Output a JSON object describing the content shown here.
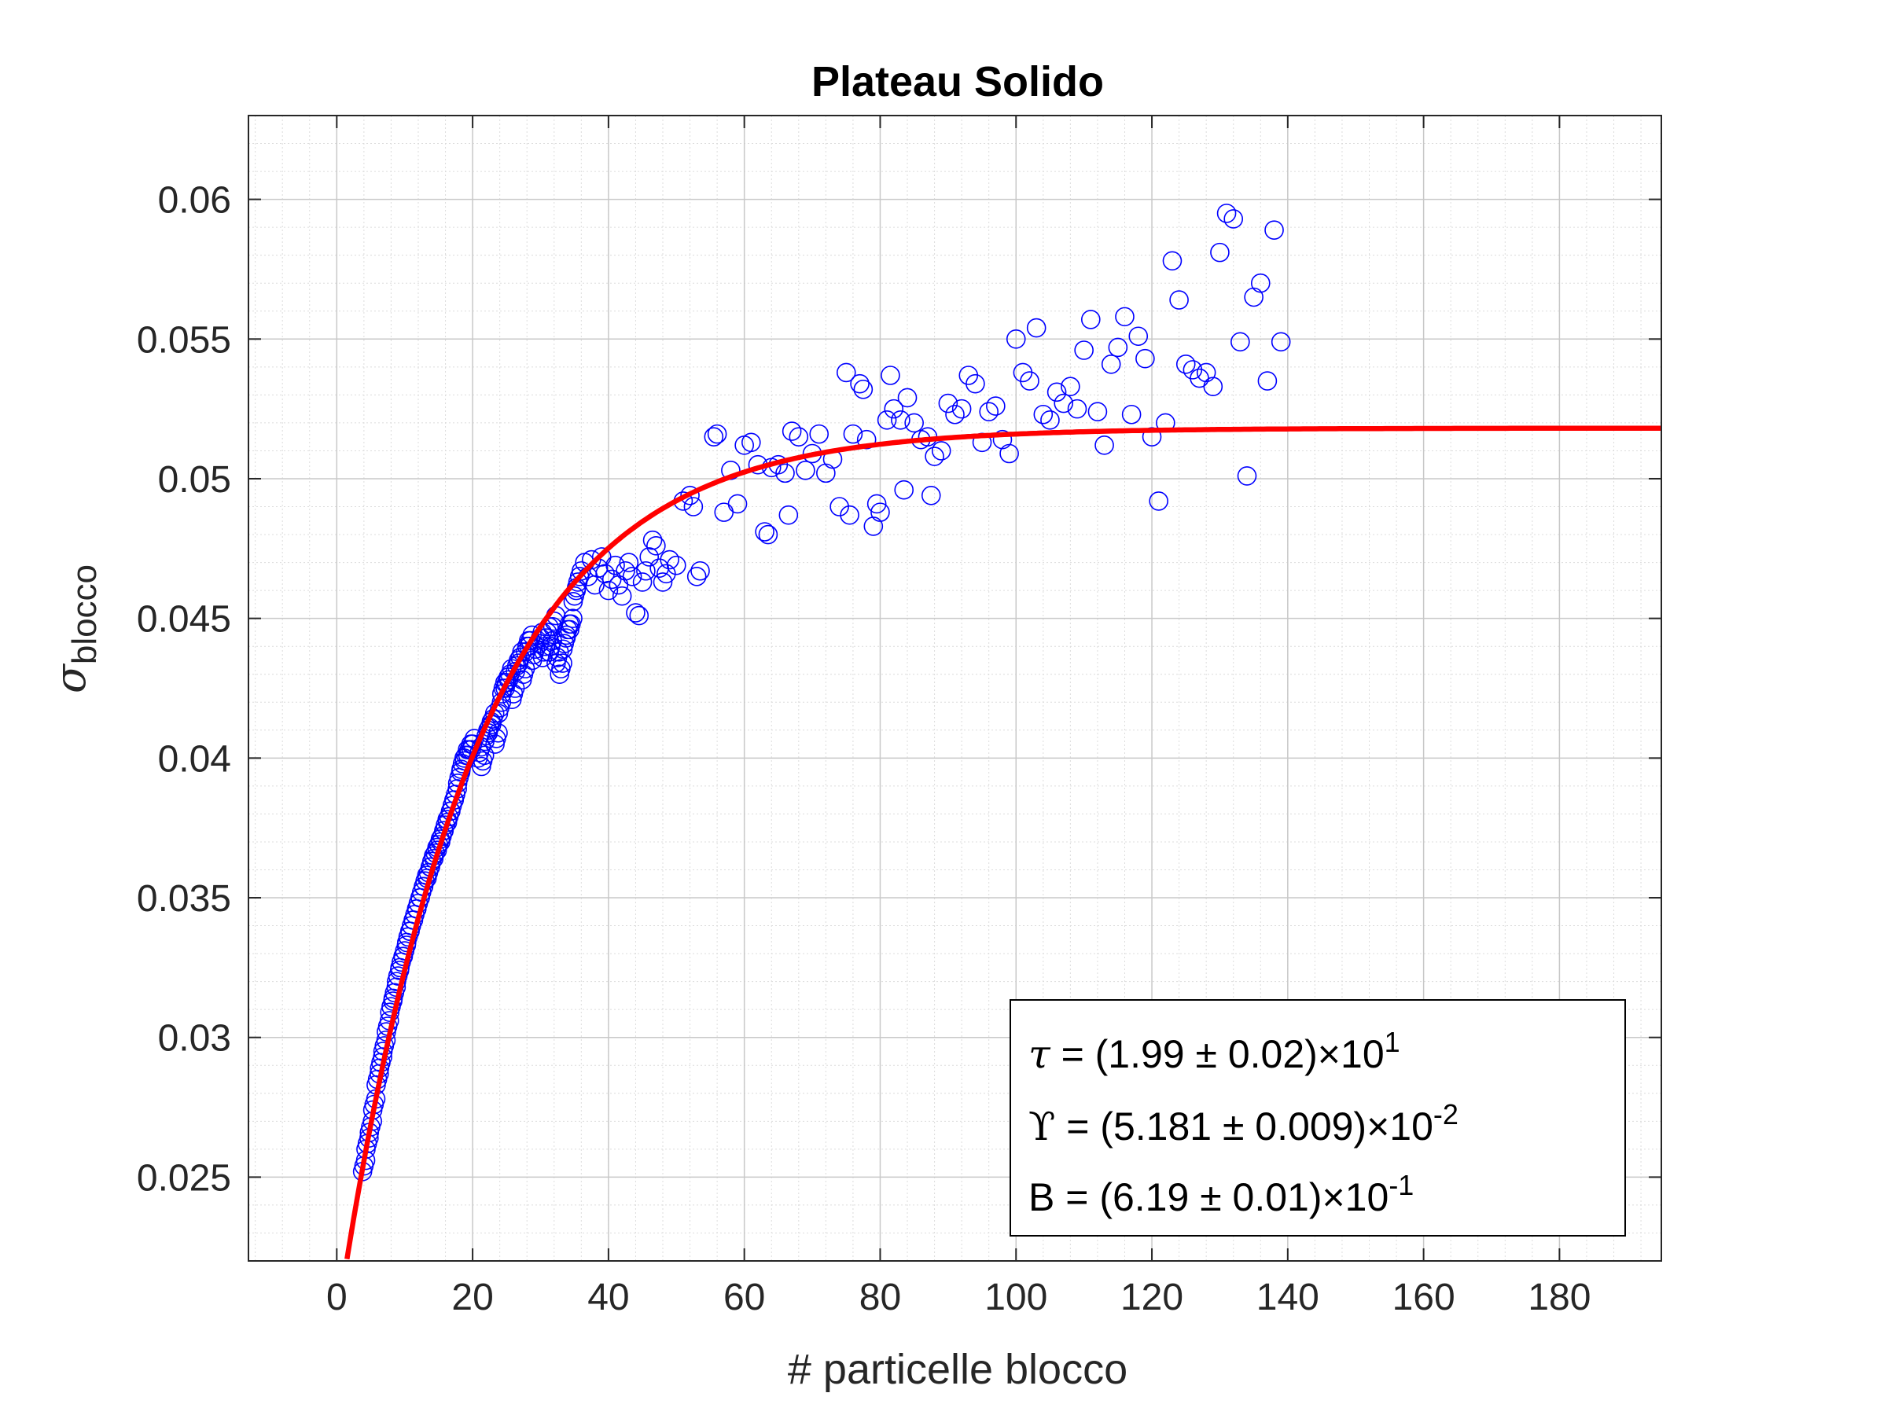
{
  "chart_data": {
    "type": "scatter",
    "title": "Plateau Solido",
    "xlabel": "# particelle blocco",
    "ylabel": {
      "symbol": "σ",
      "subscript": "blocco"
    },
    "xlim": [
      -13,
      195
    ],
    "ylim": [
      0.022,
      0.063
    ],
    "xticks": [
      0,
      20,
      40,
      60,
      80,
      100,
      120,
      140,
      160,
      180
    ],
    "xtick_labels": [
      "0",
      "20",
      "40",
      "60",
      "80",
      "100",
      "120",
      "140",
      "160",
      "180"
    ],
    "yticks": [
      0.025,
      0.03,
      0.035,
      0.04,
      0.045,
      0.05,
      0.055,
      0.06
    ],
    "ytick_labels": [
      "0.025",
      "0.03",
      "0.035",
      "0.04",
      "0.045",
      "0.05",
      "0.055",
      "0.06"
    ],
    "grid": true,
    "minor_grid": true,
    "colors": {
      "points": "#0000ff",
      "fit": "#ff0000",
      "grid": "#dcdcdc",
      "axes": "#262626"
    },
    "fit": {
      "name": "fit",
      "formula": "Upsilon * (1 - B * exp(-x / tau))",
      "params": {
        "tau": 19.9,
        "Upsilon": 0.05181,
        "B": 0.619
      },
      "x_range": [
        1.5,
        195
      ]
    },
    "series": [
      {
        "name": "data",
        "marker": "circle-open",
        "points_dense": [
          [
            4.0,
            0.0254
          ],
          [
            4.5,
            0.0262
          ],
          [
            5.0,
            0.0268
          ],
          [
            5.5,
            0.0276
          ],
          [
            6.0,
            0.0285
          ],
          [
            6.5,
            0.0291
          ],
          [
            7.0,
            0.0297
          ],
          [
            7.5,
            0.0304
          ],
          [
            8.0,
            0.0311
          ],
          [
            8.5,
            0.0316
          ],
          [
            9.0,
            0.0322
          ],
          [
            9.5,
            0.0327
          ],
          [
            10.0,
            0.0331
          ],
          [
            10.5,
            0.0336
          ],
          [
            11.0,
            0.034
          ],
          [
            11.5,
            0.0344
          ],
          [
            12.0,
            0.0348
          ],
          [
            12.5,
            0.0352
          ],
          [
            13.0,
            0.0356
          ],
          [
            13.5,
            0.0359
          ],
          [
            14.0,
            0.0363
          ],
          [
            14.5,
            0.0366
          ],
          [
            15.0,
            0.0369
          ],
          [
            15.5,
            0.0372
          ],
          [
            16.0,
            0.0376
          ],
          [
            16.5,
            0.0379
          ],
          [
            17.0,
            0.0383
          ],
          [
            17.5,
            0.0387
          ],
          [
            18.0,
            0.0393
          ],
          [
            18.5,
            0.0398
          ],
          [
            19.0,
            0.0401
          ],
          [
            19.5,
            0.0403
          ],
          [
            20.0,
            0.0405
          ],
          [
            21.0,
            0.0402
          ],
          [
            21.5,
            0.0399
          ],
          [
            22.0,
            0.0408
          ],
          [
            22.5,
            0.0411
          ],
          [
            23.0,
            0.0414
          ],
          [
            23.5,
            0.0407
          ],
          [
            24.0,
            0.0418
          ],
          [
            24.5,
            0.0425
          ],
          [
            25.0,
            0.0427
          ],
          [
            25.5,
            0.043
          ],
          [
            26.0,
            0.0423
          ],
          [
            26.5,
            0.0433
          ],
          [
            27.0,
            0.0436
          ],
          [
            27.5,
            0.043
          ],
          [
            28.0,
            0.044
          ],
          [
            28.5,
            0.0442
          ],
          [
            29.0,
            0.0437
          ],
          [
            30.0,
            0.0443
          ],
          [
            30.5,
            0.0438
          ],
          [
            31.0,
            0.0445
          ],
          [
            31.5,
            0.044
          ],
          [
            32.0,
            0.0449
          ],
          [
            32.5,
            0.0436
          ],
          [
            33.0,
            0.0432
          ],
          [
            33.5,
            0.0441
          ],
          [
            34.0,
            0.0446
          ],
          [
            34.5,
            0.0448
          ],
          [
            35.0,
            0.0458
          ],
          [
            35.5,
            0.0463
          ],
          [
            36.0,
            0.0467
          ],
          [
            36.5,
            0.047
          ],
          [
            37.0,
            0.0465
          ],
          [
            37.5,
            0.0471
          ],
          [
            38.0,
            0.0462
          ],
          [
            38.5,
            0.0468
          ],
          [
            39.0,
            0.0472
          ],
          [
            39.5,
            0.0466
          ],
          [
            40.0,
            0.046
          ],
          [
            40.5,
            0.0464
          ],
          [
            41.0,
            0.0469
          ],
          [
            41.5,
            0.0462
          ],
          [
            42.0,
            0.0458
          ],
          [
            42.5,
            0.0467
          ],
          [
            43.0,
            0.047
          ],
          [
            43.5,
            0.0465
          ],
          [
            44.0,
            0.0452
          ],
          [
            44.5,
            0.0451
          ],
          [
            45.0,
            0.0463
          ],
          [
            45.5,
            0.0467
          ],
          [
            46.0,
            0.0472
          ],
          [
            46.5,
            0.0478
          ],
          [
            47.0,
            0.0476
          ],
          [
            47.5,
            0.0468
          ],
          [
            48.0,
            0.0463
          ],
          [
            48.5,
            0.0466
          ],
          [
            49.0,
            0.0471
          ],
          [
            50.0,
            0.0469
          ],
          [
            51.0,
            0.0492
          ],
          [
            52.0,
            0.0494
          ],
          [
            52.5,
            0.049
          ],
          [
            53.0,
            0.0465
          ],
          [
            53.5,
            0.0467
          ]
        ],
        "points_sparse": [
          [
            55.5,
            0.0515
          ],
          [
            56.0,
            0.0516
          ],
          [
            57.0,
            0.0488
          ],
          [
            58.0,
            0.0503
          ],
          [
            59.0,
            0.0491
          ],
          [
            60.0,
            0.0512
          ],
          [
            61.0,
            0.0513
          ],
          [
            62.0,
            0.0505
          ],
          [
            63.0,
            0.0481
          ],
          [
            63.5,
            0.048
          ],
          [
            64.0,
            0.0504
          ],
          [
            65.0,
            0.0505
          ],
          [
            66.0,
            0.0502
          ],
          [
            66.5,
            0.0487
          ],
          [
            67.0,
            0.0517
          ],
          [
            68.0,
            0.0515
          ],
          [
            69.0,
            0.0503
          ],
          [
            70.0,
            0.0509
          ],
          [
            71.0,
            0.0516
          ],
          [
            72.0,
            0.0502
          ],
          [
            73.0,
            0.0507
          ],
          [
            74.0,
            0.049
          ],
          [
            75.0,
            0.0538
          ],
          [
            75.5,
            0.0487
          ],
          [
            76.0,
            0.0516
          ],
          [
            77.0,
            0.0534
          ],
          [
            77.5,
            0.0532
          ],
          [
            78.0,
            0.0514
          ],
          [
            79.0,
            0.0483
          ],
          [
            79.5,
            0.0491
          ],
          [
            80.0,
            0.0488
          ],
          [
            81.0,
            0.0521
          ],
          [
            81.5,
            0.0537
          ],
          [
            82.0,
            0.0525
          ],
          [
            83.0,
            0.0521
          ],
          [
            83.5,
            0.0496
          ],
          [
            84.0,
            0.0529
          ],
          [
            85.0,
            0.052
          ],
          [
            86.0,
            0.0514
          ],
          [
            87.0,
            0.0515
          ],
          [
            87.5,
            0.0494
          ],
          [
            88.0,
            0.0508
          ],
          [
            89.0,
            0.051
          ],
          [
            90.0,
            0.0527
          ],
          [
            91.0,
            0.0523
          ],
          [
            92.0,
            0.0525
          ],
          [
            93.0,
            0.0537
          ],
          [
            94.0,
            0.0534
          ],
          [
            95.0,
            0.0513
          ],
          [
            96.0,
            0.0524
          ],
          [
            97.0,
            0.0526
          ],
          [
            98.0,
            0.0514
          ],
          [
            99.0,
            0.0509
          ],
          [
            100.0,
            0.055
          ],
          [
            101.0,
            0.0538
          ],
          [
            102.0,
            0.0535
          ],
          [
            103.0,
            0.0554
          ],
          [
            104.0,
            0.0523
          ],
          [
            105.0,
            0.0521
          ],
          [
            106.0,
            0.0531
          ],
          [
            107.0,
            0.0527
          ],
          [
            108.0,
            0.0533
          ],
          [
            109.0,
            0.0525
          ],
          [
            110.0,
            0.0546
          ],
          [
            111.0,
            0.0557
          ],
          [
            112.0,
            0.0524
          ],
          [
            113.0,
            0.0512
          ],
          [
            114.0,
            0.0541
          ],
          [
            115.0,
            0.0547
          ],
          [
            116.0,
            0.0558
          ],
          [
            117.0,
            0.0523
          ],
          [
            118.0,
            0.0551
          ],
          [
            119.0,
            0.0543
          ],
          [
            120.0,
            0.0515
          ],
          [
            121.0,
            0.0492
          ],
          [
            122.0,
            0.052
          ],
          [
            123.0,
            0.0578
          ],
          [
            124.0,
            0.0564
          ],
          [
            125.0,
            0.0541
          ],
          [
            126.0,
            0.0539
          ],
          [
            127.0,
            0.0536
          ],
          [
            128.0,
            0.0538
          ],
          [
            129.0,
            0.0533
          ],
          [
            130.0,
            0.0581
          ],
          [
            131.0,
            0.0595
          ],
          [
            132.0,
            0.0593
          ],
          [
            133.0,
            0.0549
          ],
          [
            134.0,
            0.0501
          ],
          [
            135.0,
            0.0565
          ],
          [
            136.0,
            0.057
          ],
          [
            137.0,
            0.0535
          ],
          [
            138.0,
            0.0589
          ],
          [
            139.0,
            0.0549
          ]
        ]
      }
    ]
  },
  "annotation": {
    "lines": [
      {
        "symbol": "τ",
        "text": " = (1.99 ± 0.02)×10",
        "exponent": "1"
      },
      {
        "symbol": "ϒ",
        "text": " = (5.181 ± 0.009)×10",
        "exponent": "-2"
      },
      {
        "symbol": "",
        "text": "B = (6.19 ± 0.01)×10",
        "exponent": "-1"
      }
    ]
  }
}
